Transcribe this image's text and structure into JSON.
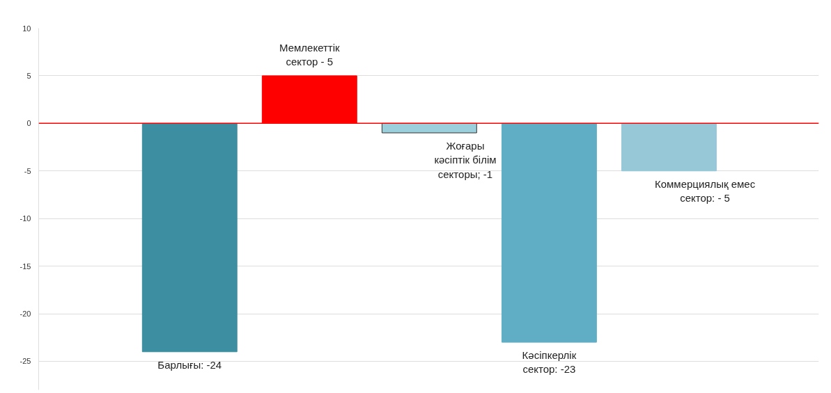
{
  "chart_data": {
    "type": "bar",
    "categories": [
      null,
      null,
      null,
      null,
      null
    ],
    "values": [
      -24,
      5,
      -1,
      -23,
      -5
    ],
    "colors": [
      "#3c8ea0",
      "#ff0000",
      "#9ccfdc",
      "#5faec6",
      "#96c8d8"
    ],
    "annotations": [
      {
        "text": "Барлығы: -24",
        "y": -24
      },
      {
        "text": "Мемлекеттік\nсектор - 5",
        "y": 5
      },
      {
        "text": "Жоғары\nкәсіптік білім\nсекторы; -1",
        "y": -1
      },
      {
        "text": "Кәсіпкерлік\nсектор: -23",
        "y": -23
      },
      {
        "text": "Коммерциялық емес\nсектор: - 5",
        "y": -5
      }
    ],
    "ylim": [
      -28,
      10
    ],
    "yticks": [
      -25,
      -20,
      -15,
      -10,
      -5,
      0,
      5,
      10
    ],
    "grid": "y",
    "ref_lines": [
      {
        "axis": "y",
        "value": 0,
        "color": "#ff0000"
      }
    ]
  }
}
